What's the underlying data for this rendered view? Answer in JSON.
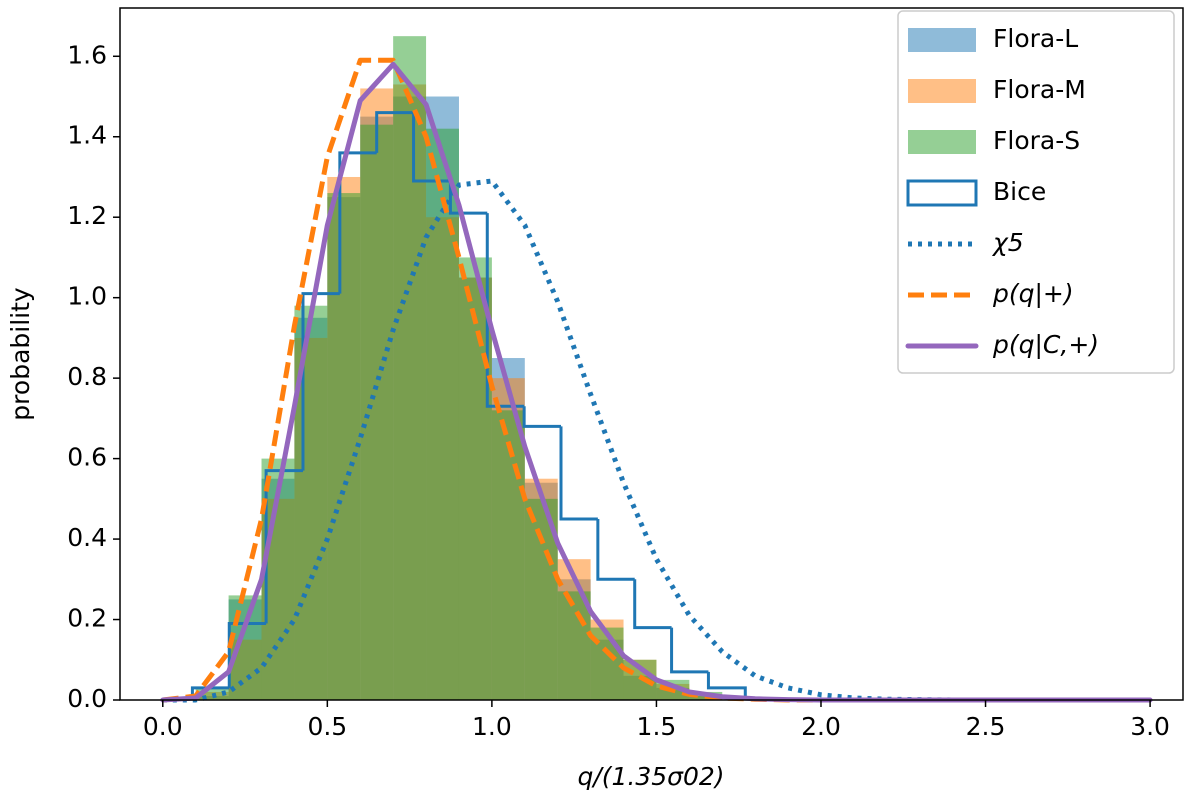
{
  "chart_data": {
    "type": "histogram",
    "xlabel": "q/(1.35σ02)",
    "ylabel": "probability",
    "xlim": [
      -0.13,
      3.1
    ],
    "ylim": [
      0,
      1.72
    ],
    "xticks": [
      {
        "value": 0,
        "label": "0.0"
      },
      {
        "value": 0.5,
        "label": "0.5"
      },
      {
        "value": 1,
        "label": "1.0"
      },
      {
        "value": 1.5,
        "label": "1.5"
      },
      {
        "value": 2,
        "label": "2.0"
      },
      {
        "value": 2.5,
        "label": "2.5"
      },
      {
        "value": 3,
        "label": "3.0"
      }
    ],
    "yticks": [
      {
        "value": 0,
        "label": "0.0"
      },
      {
        "value": 0.2,
        "label": "0.2"
      },
      {
        "value": 0.4,
        "label": "0.4"
      },
      {
        "value": 0.6,
        "label": "0.6"
      },
      {
        "value": 0.8,
        "label": "0.8"
      },
      {
        "value": 1,
        "label": "1.0"
      },
      {
        "value": 1.2,
        "label": "1.2"
      },
      {
        "value": 1.4,
        "label": "1.4"
      },
      {
        "value": 1.6,
        "label": "1.6"
      }
    ],
    "legend": "upper right",
    "series": [
      {
        "name": "Flora-L",
        "kind": "bar",
        "color": "#1f77b4",
        "opacity": 0.5,
        "bins": [
          0.1,
          0.2,
          0.3,
          0.4,
          0.5,
          0.6,
          0.7,
          0.8,
          0.9,
          1.0,
          1.1,
          1.2,
          1.3,
          1.4,
          1.5,
          1.6,
          1.7
        ],
        "values": [
          0.01,
          0.25,
          0.55,
          0.95,
          1.25,
          1.45,
          1.5,
          1.5,
          1.05,
          0.85,
          0.54,
          0.3,
          0.15,
          0.06,
          0.03,
          0.01
        ]
      },
      {
        "name": "Flora-M",
        "kind": "bar",
        "color": "#ff7f0e",
        "opacity": 0.5,
        "bins": [
          0.1,
          0.2,
          0.3,
          0.4,
          0.5,
          0.6,
          0.7,
          0.8,
          0.9,
          1.0,
          1.1,
          1.2,
          1.3,
          1.4,
          1.5,
          1.6,
          1.7
        ],
        "values": [
          0.02,
          0.15,
          0.5,
          0.9,
          1.3,
          1.52,
          1.53,
          1.2,
          1.05,
          0.8,
          0.55,
          0.35,
          0.2,
          0.1,
          0.04,
          0.01
        ]
      },
      {
        "name": "Flora-S",
        "kind": "bar",
        "color": "#2ca02c",
        "opacity": 0.5,
        "bins": [
          0.1,
          0.2,
          0.3,
          0.4,
          0.5,
          0.6,
          0.7,
          0.8,
          0.9,
          1.0,
          1.1,
          1.2,
          1.3,
          1.4,
          1.5,
          1.6,
          1.7
        ],
        "values": [
          0.03,
          0.26,
          0.6,
          0.98,
          1.26,
          1.43,
          1.65,
          1.42,
          1.1,
          0.72,
          0.5,
          0.27,
          0.18,
          0.1,
          0.05,
          0.02
        ]
      },
      {
        "name": "Bice",
        "kind": "step",
        "color": "#1f77b4",
        "bins": [
          0.09,
          0.202,
          0.314,
          0.426,
          0.538,
          0.65,
          0.762,
          0.874,
          0.986,
          1.098,
          1.21,
          1.322,
          1.434,
          1.546,
          1.658,
          1.77
        ],
        "values": [
          0.03,
          0.19,
          0.57,
          1.01,
          1.36,
          1.46,
          1.29,
          1.21,
          0.73,
          0.68,
          0.45,
          0.3,
          0.18,
          0.07,
          0.03
        ]
      },
      {
        "name": "χ5",
        "kind": "line",
        "dash": "dotted",
        "color": "#1f77b4",
        "x": [
          0,
          0.1,
          0.2,
          0.3,
          0.4,
          0.5,
          0.6,
          0.7,
          0.8,
          0.9,
          1.0,
          1.1,
          1.2,
          1.3,
          1.4,
          1.5,
          1.6,
          1.7,
          1.8,
          1.9,
          2.0,
          2.1,
          2.2,
          2.3,
          2.4,
          2.5,
          2.6,
          2.7,
          2.8,
          2.9,
          3.0
        ],
        "values": [
          0,
          0,
          0.02,
          0.08,
          0.2,
          0.4,
          0.65,
          0.92,
          1.15,
          1.28,
          1.29,
          1.18,
          0.99,
          0.76,
          0.54,
          0.35,
          0.21,
          0.12,
          0.06,
          0.03,
          0.013,
          0.005,
          0.002,
          0.001,
          0,
          0,
          0,
          0,
          0,
          0,
          0
        ]
      },
      {
        "name": "p(q|+)",
        "kind": "line",
        "dash": "dashed",
        "color": "#ff7f0e",
        "x": [
          0,
          0.1,
          0.2,
          0.3,
          0.4,
          0.5,
          0.6,
          0.7,
          0.8,
          0.9,
          1.0,
          1.1,
          1.2,
          1.3,
          1.4,
          1.5,
          1.6,
          1.7,
          1.8,
          1.9,
          2.0,
          2.1,
          2.2,
          2.3,
          2.4,
          2.5,
          2.6,
          2.7,
          2.8,
          2.9,
          3.0
        ],
        "values": [
          0,
          0.01,
          0.12,
          0.45,
          0.93,
          1.35,
          1.59,
          1.59,
          1.4,
          1.1,
          0.78,
          0.5,
          0.3,
          0.16,
          0.08,
          0.035,
          0.014,
          0.005,
          0.002,
          0,
          0,
          0,
          0,
          0,
          0,
          0,
          0,
          0,
          0,
          0,
          0
        ]
      },
      {
        "name": "p(q|C,+)",
        "kind": "line",
        "dash": "solid",
        "color": "#9467bd",
        "x": [
          0,
          0.1,
          0.2,
          0.3,
          0.4,
          0.5,
          0.6,
          0.7,
          0.8,
          0.9,
          1.0,
          1.1,
          1.2,
          1.3,
          1.4,
          1.5,
          1.6,
          1.7,
          1.8,
          1.9,
          2.0,
          2.1,
          2.2,
          2.3,
          2.4,
          2.5,
          2.6,
          2.7,
          2.8,
          2.9,
          3.0
        ],
        "values": [
          0,
          0.005,
          0.07,
          0.3,
          0.73,
          1.18,
          1.49,
          1.58,
          1.48,
          1.23,
          0.92,
          0.63,
          0.39,
          0.22,
          0.11,
          0.05,
          0.02,
          0.008,
          0.003,
          0.001,
          0,
          0,
          0,
          0,
          0,
          0,
          0,
          0,
          0,
          0,
          0
        ]
      }
    ]
  }
}
